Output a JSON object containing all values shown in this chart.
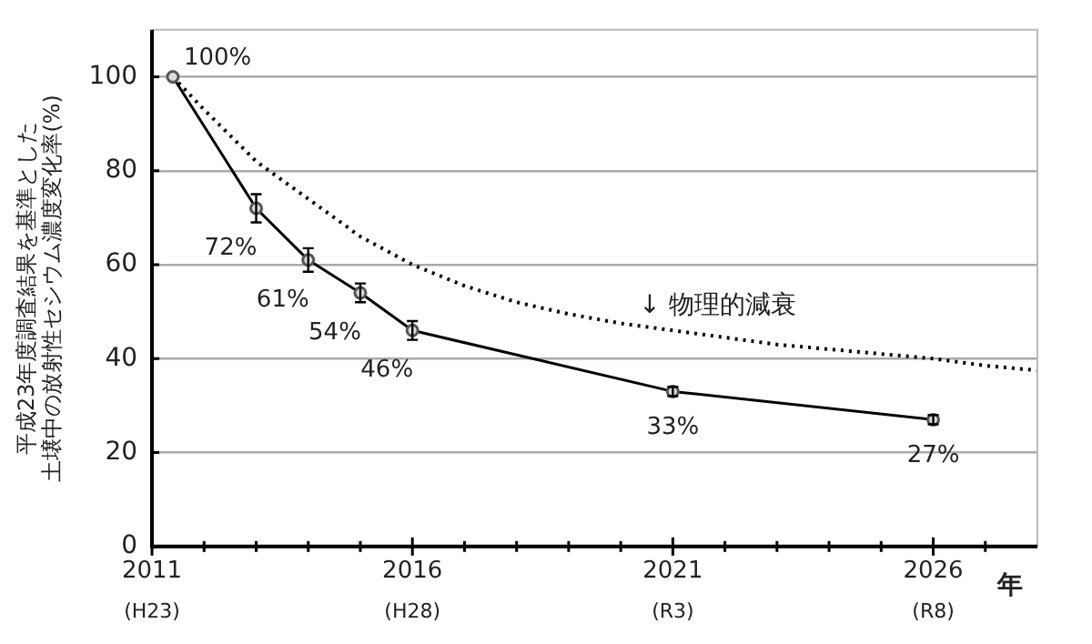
{
  "chart_data": {
    "type": "line",
    "ylabel": "平成23年度調査結果を基準とした土壌中の放射性セシウム濃度変化率(%)",
    "xlabel": "年",
    "xlim": [
      2011,
      2028
    ],
    "ylim": [
      0,
      110
    ],
    "xticks": [
      2011,
      {
        "value": 2012,
        "label": null
      },
      {
        "value": 2013,
        "label": null
      },
      {
        "value": 2014,
        "label": null
      },
      {
        "value": 2015,
        "label": null
      },
      2016,
      {
        "value": 2017,
        "label": null
      },
      {
        "value": 2018,
        "label": null
      },
      {
        "value": 2019,
        "label": null
      },
      {
        "value": 2020,
        "label": null
      },
      2021,
      {
        "value": 2022,
        "label": null
      },
      {
        "value": 2023,
        "label": null
      },
      {
        "value": 2024,
        "label": null
      },
      {
        "value": 2025,
        "label": null
      },
      2026,
      {
        "value": 2027,
        "label": null
      }
    ],
    "yticks": [
      0,
      20,
      40,
      60,
      80,
      100
    ],
    "grid": "y",
    "legend": false,
    "series": [
      {
        "color": "#000000",
        "marker": "circle",
        "line_style": "solid",
        "x": [
          2011.4,
          2013,
          2014,
          2015,
          2016,
          2021,
          2026
        ],
        "values": [
          100,
          72,
          61,
          54,
          46,
          33,
          27
        ],
        "errors": [
          null,
          3,
          2.5,
          2,
          2,
          1,
          1
        ],
        "value_labels": [
          "100%",
          "72%",
          "61%",
          "54%",
          "46%",
          "33%",
          "27%"
        ]
      },
      {
        "color": "#000000",
        "marker": "none",
        "line_style": "dotted",
        "x": [
          2011.4,
          2012,
          2013,
          2014,
          2015,
          2016,
          2017,
          2018,
          2019,
          2020,
          2021,
          2022,
          2023,
          2024,
          2025,
          2026,
          2027,
          2028
        ],
        "values": [
          100,
          93,
          82,
          74,
          66,
          60,
          55.5,
          52,
          49.5,
          47.5,
          46,
          44.5,
          43,
          42,
          41,
          40,
          38.5,
          37.5
        ]
      }
    ],
    "annotations": [
      "↓ 物理的減衰",
      "(H23)",
      "(H28)",
      "(R3)",
      "(R8)"
    ]
  }
}
